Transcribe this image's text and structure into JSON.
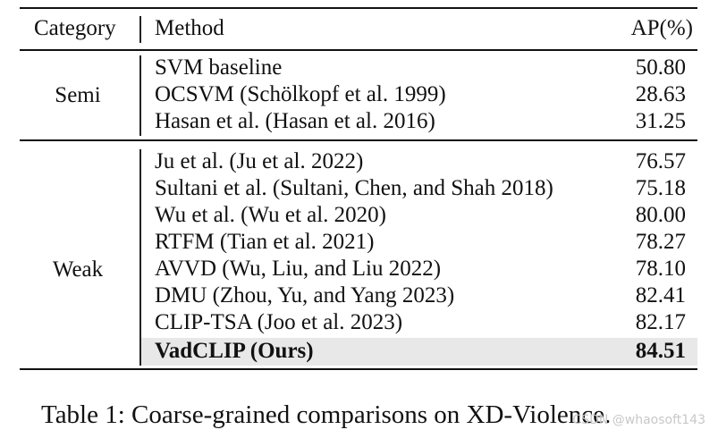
{
  "table": {
    "headers": {
      "category": "Category",
      "method": "Method",
      "ap": "AP(%)"
    },
    "groups": [
      {
        "category": "Semi",
        "rows": [
          {
            "method": "SVM baseline",
            "ap": "50.80"
          },
          {
            "method": "OCSVM (Schölkopf et al. 1999)",
            "ap": "28.63"
          },
          {
            "method": "Hasan et al. (Hasan et al. 2016)",
            "ap": "31.25"
          }
        ]
      },
      {
        "category": "Weak",
        "rows": [
          {
            "method": "Ju et al. (Ju et al. 2022)",
            "ap": "76.57"
          },
          {
            "method": "Sultani et al. (Sultani, Chen, and Shah 2018)",
            "ap": "75.18"
          },
          {
            "method": "Wu et al. (Wu et al. 2020)",
            "ap": "80.00"
          },
          {
            "method": "RTFM (Tian et al. 2021)",
            "ap": "78.27"
          },
          {
            "method": "AVVD (Wu, Liu, and Liu 2022)",
            "ap": "78.10"
          },
          {
            "method": "DMU (Zhou, Yu, and Yang 2023)",
            "ap": "82.41"
          },
          {
            "method": "CLIP-TSA (Joo et al. 2023)",
            "ap": "82.17"
          },
          {
            "method": "VadCLIP (Ours)",
            "ap": "84.51"
          }
        ]
      }
    ]
  },
  "caption": "Table 1: Coarse-grained comparisons on XD-Violence.",
  "watermark": "CSDN @whaosoft143"
}
